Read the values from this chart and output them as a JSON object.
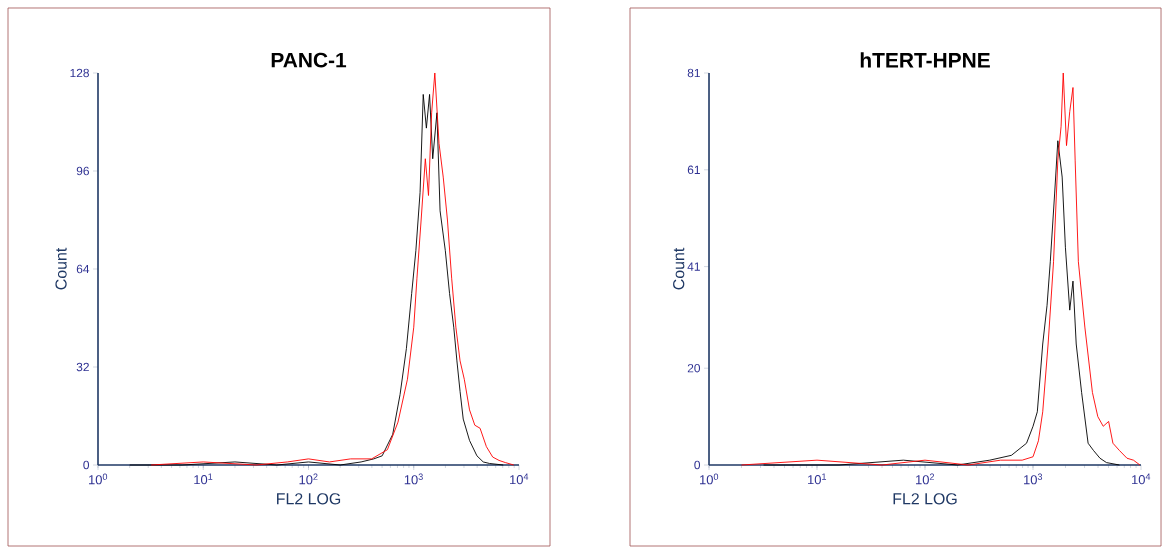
{
  "chart_data": [
    {
      "type": "line",
      "title": "PANC-1",
      "xlabel": "FL2 LOG",
      "ylabel": "Count",
      "log": "x",
      "xlim": [
        1,
        10000
      ],
      "xticks": [
        {
          "value": 1,
          "label": "10$^{0}$"
        },
        {
          "value": 10,
          "label": "10$^{1}$"
        },
        {
          "value": 100,
          "label": "10$^{2}$"
        },
        {
          "value": 1000,
          "label": "10$^{3}$"
        },
        {
          "value": 10000,
          "label": "10$^{4}$"
        }
      ],
      "ylim": [
        0,
        128
      ],
      "yticks": [
        0,
        32,
        64,
        96,
        128
      ],
      "series": [
        {
          "color": "#000000",
          "x": [
            2.0,
            6.3,
            20,
            50,
            100,
            200,
            316,
            417,
            501,
            631,
            741,
            851,
            955,
            1047,
            1148,
            1230,
            1318,
            1413,
            1514,
            1660,
            1778,
            1995,
            2188,
            2399,
            2570,
            2754,
            2951,
            3388,
            3981,
            4571,
            5248,
            7079
          ],
          "values": [
            0,
            0,
            1,
            0,
            1,
            0,
            1,
            2,
            3,
            10,
            23,
            38,
            56,
            70,
            89,
            121,
            110,
            121,
            100,
            115,
            83,
            70,
            56,
            45,
            34,
            24,
            15,
            8,
            3,
            1,
            0.5,
            0
          ]
        },
        {
          "color": "#ff0000",
          "x": [
            3.2,
            10,
            32,
            63,
            100,
            158,
            251,
            398,
            562,
            708,
            871,
            1000,
            1072,
            1175,
            1288,
            1380,
            1479,
            1585,
            1738,
            1905,
            2089,
            2291,
            2512,
            2754,
            3020,
            3388,
            3802,
            4266,
            4898,
            5623,
            6457,
            7413,
            8913
          ],
          "values": [
            0,
            1,
            0,
            1,
            2,
            1,
            2,
            2,
            5,
            14,
            28,
            45,
            61,
            80,
            100,
            88,
            115,
            128,
            105,
            94,
            80,
            61,
            45,
            34,
            28,
            18,
            13,
            12,
            6,
            2.6,
            1.5,
            0.8,
            0
          ]
        }
      ]
    },
    {
      "type": "line",
      "title": "hTERT-HPNE",
      "xlabel": "FL2 LOG",
      "ylabel": "Count",
      "log": "x",
      "xlim": [
        1,
        10000
      ],
      "xticks": [
        {
          "value": 1,
          "label": "10$^{0}$"
        },
        {
          "value": 10,
          "label": "10$^{1}$"
        },
        {
          "value": 100,
          "label": "10$^{2}$"
        },
        {
          "value": 1000,
          "label": "10$^{3}$"
        },
        {
          "value": 10000,
          "label": "10$^{4}$"
        }
      ],
      "ylim": [
        0,
        81
      ],
      "yticks": [
        0,
        20,
        41,
        61,
        81
      ],
      "series": [
        {
          "color": "#000000",
          "x": [
            3.2,
            16,
            63,
            200,
            398,
            631,
            871,
            1000,
            1096,
            1230,
            1349,
            1445,
            1585,
            1698,
            1862,
            1995,
            2188,
            2344,
            2512,
            2818,
            3236,
            3631,
            4169,
            4786,
            6310
          ],
          "values": [
            0,
            0,
            1,
            0,
            1,
            2,
            4.5,
            8,
            11,
            25,
            33,
            42,
            56,
            67,
            59.5,
            45,
            32,
            38,
            25,
            15,
            4.5,
            3,
            1.4,
            0.5,
            0
          ]
        },
        {
          "color": "#ff0000",
          "x": [
            2.0,
            10,
            40,
            100,
            251,
            501,
            794,
            1000,
            1122,
            1230,
            1380,
            1549,
            1698,
            1820,
            1905,
            2042,
            2188,
            2344,
            2455,
            2630,
            3020,
            3548,
            3981,
            4467,
            5012,
            5495,
            6310,
            7413,
            8511,
            9772
          ],
          "values": [
            0,
            1,
            0,
            1,
            0,
            1,
            1,
            1.7,
            5,
            11,
            25,
            42,
            63,
            70,
            81,
            66,
            73,
            78,
            63,
            42,
            28.5,
            15,
            10,
            8,
            9,
            4.5,
            3,
            1.4,
            1,
            0
          ]
        }
      ]
    }
  ]
}
